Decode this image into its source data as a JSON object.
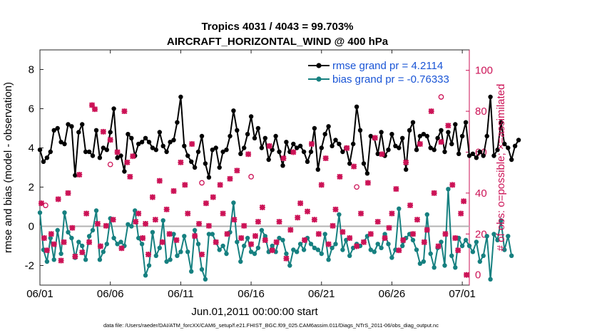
{
  "chart_data": {
    "type": "line",
    "title": "Tropics 4031 / 4043 = 99.703%",
    "subtitle": "AIRCRAFT_HORIZONTAL_WIND @ 400 hPa",
    "xlabel": "Jun.01,2011 00:00:00 start",
    "ylabel": "rmse and bias (model - observation)",
    "ylabel_right": "# of obs: o=possible; ×=assimilated",
    "xlim": [
      0,
      30.5
    ],
    "ylim": [
      -3,
      9
    ],
    "ylim_right": [
      -5,
      110
    ],
    "x_ticks": [
      0,
      5,
      10,
      15,
      20,
      25,
      30
    ],
    "x_tick_labels": [
      "06/01",
      "06/06",
      "06/11",
      "06/16",
      "06/21",
      "06/26",
      "07/01"
    ],
    "y_ticks": [
      -2,
      0,
      2,
      4,
      6,
      8
    ],
    "y_tick_labels": [
      "-2",
      "0",
      "2",
      "4",
      "6",
      "8"
    ],
    "y_right_ticks": [
      0,
      20,
      40,
      60,
      80,
      100
    ],
    "y_right_tick_labels": [
      "0",
      "20",
      "40",
      "60",
      "80",
      "100"
    ],
    "legend_position": "top-right",
    "zero_line": 0,
    "footnote": "data file: /Users/raeder/DAI/ATM_forcXX/CAM6_setup/f.e21.FHIST_BGC.f09_025.CAM6assim.011/Diags_NTrS_2011-06/obs_diag_output.nc",
    "colors": {
      "rmse": "#000000",
      "bias": "#168080",
      "counts": "#cc1256",
      "zero": "#b3b3b3",
      "legend_text": "#1a55d6"
    },
    "series": [
      {
        "name": "rmse grand pr = 4.2114",
        "axis": "left",
        "values": [
          3.9,
          3.3,
          3.5,
          3.8,
          4.9,
          5.0,
          4.3,
          4.2,
          5.2,
          5.1,
          2.6,
          4.8,
          5.2,
          3.8,
          3.8,
          3.6,
          4.9,
          3.5,
          4.0,
          3.9,
          4.8,
          6.0,
          3.5,
          3.6,
          2.8,
          4.7,
          4.5,
          3.6,
          4.2,
          4.3,
          4.5,
          4.3,
          4.0,
          3.9,
          4.8,
          4.1,
          3.8,
          4.3,
          4.4,
          5.3,
          6.6,
          4.1,
          3.6,
          3.3,
          3.0,
          3.8,
          4.6,
          3.2,
          2.5,
          3.9,
          4.0,
          3.0,
          3.8,
          3.9,
          4.6,
          5.9,
          4.9,
          3.7,
          4.0,
          4.7,
          5.6,
          4.5,
          5.0,
          4.0,
          4.5,
          3.4,
          3.9,
          4.6,
          3.8,
          3.1,
          4.3,
          3.8,
          4.2,
          4.0,
          4.1,
          3.8,
          3.3,
          3.8,
          5.0,
          2.9,
          4.0,
          4.7,
          5.1,
          4.1,
          4.4,
          4.2,
          3.8,
          4.0,
          3.2,
          4.2,
          6.1,
          4.9,
          3.2,
          2.7,
          4.6,
          4.5,
          3.7,
          4.8,
          3.6,
          3.9,
          4.7,
          4.1,
          4.0,
          4.5,
          2.9,
          4.9,
          5.3,
          3.9,
          4.6,
          4.7,
          4.6,
          4.0,
          3.9,
          4.5,
          4.9,
          3.8,
          4.8,
          4.2,
          5.2,
          3.7,
          4.6,
          5.3,
          3.6,
          3.7,
          3.5,
          3.8,
          3.6,
          4.6,
          6.6,
          3.6,
          3.9,
          5.3,
          4.2,
          4.0,
          3.4,
          4.1,
          4.4
        ],
        "x_start": 0,
        "x_step": 0.25
      },
      {
        "name": "bias grand pr = -0.76333",
        "axis": "left",
        "values": [
          0.7,
          -1.2,
          -1.8,
          -0.6,
          -1.7,
          -0.2,
          -1.4,
          0.7,
          -0.3,
          -0.6,
          -1.6,
          -0.8,
          -1.0,
          -1.7,
          -0.5,
          -0.2,
          0.8,
          -1.7,
          -1.3,
          -0.9,
          0.4,
          -0.6,
          -0.9,
          -0.8,
          -1.0,
          0.1,
          0.0,
          0.8,
          -0.6,
          -0.9,
          -2.5,
          -2.0,
          -0.3,
          -1.5,
          -1.1,
          0.3,
          -1.8,
          -1.7,
          -0.4,
          -1.5,
          -1.3,
          -0.5,
          -1.3,
          -2.3,
          -0.2,
          -0.9,
          -2.2,
          -2.7,
          -0.4,
          -0.4,
          -0.8,
          -1.2,
          -1.0,
          -1.4,
          -0.3,
          1.2,
          -0.8,
          -1.8,
          -1.0,
          -0.6,
          -1.3,
          -1.4,
          -1.1,
          -0.2,
          -0.5,
          -1.3,
          -1.0,
          -1.3,
          -0.6,
          -0.7,
          -1.4,
          -2.0,
          -1.2,
          -1.3,
          -0.9,
          -1.2,
          -0.6,
          -0.9,
          -1.1,
          -1.2,
          -1.4,
          -0.4,
          -1.7,
          -1.1,
          -0.9,
          0.6,
          -1.2,
          -0.7,
          -1.5,
          -1.1,
          -0.9,
          -1.0,
          -0.8,
          -0.5,
          -1.2,
          -1.3,
          -0.9,
          -1.1,
          -0.4,
          -0.9,
          -1.6,
          -1.2,
          0.9,
          -1.0,
          -0.6,
          -0.4,
          -0.7,
          -1.2,
          -1.9,
          -1.8,
          0.6,
          -1.4,
          -2.1,
          -1.1,
          -0.8,
          -2.0,
          1.9,
          -1.5,
          -2.1,
          -0.6,
          -1.0,
          -0.7,
          -1.0,
          -1.3,
          -0.8,
          -1.8,
          -1.5,
          -0.5,
          -2.7,
          -0.4,
          -0.7,
          0.3,
          -1.2,
          -0.5,
          -1.5
        ],
        "x_start": 0,
        "x_step": 0.25
      },
      {
        "name": "possible",
        "axis": "right",
        "marker": "circle",
        "points": [
          [
            0.4,
            34
          ],
          [
            5.0,
            54
          ],
          [
            11.5,
            45
          ],
          [
            15.0,
            48
          ],
          [
            22.5,
            43
          ],
          [
            28.5,
            87
          ]
        ]
      },
      {
        "name": "assimilated",
        "axis": "right",
        "marker": "x",
        "points": [
          [
            0.1,
            35
          ],
          [
            0.3,
            18
          ],
          [
            0.5,
            12
          ],
          [
            0.8,
            20
          ],
          [
            1.0,
            15
          ],
          [
            1.3,
            37
          ],
          [
            1.5,
            7
          ],
          [
            1.7,
            16
          ],
          [
            2.0,
            40
          ],
          [
            2.3,
            23
          ],
          [
            2.5,
            9
          ],
          [
            2.8,
            49
          ],
          [
            3.0,
            11
          ],
          [
            3.3,
            30
          ],
          [
            3.5,
            16
          ],
          [
            3.7,
            83
          ],
          [
            3.9,
            81
          ],
          [
            4.1,
            25
          ],
          [
            4.3,
            14
          ],
          [
            4.5,
            70
          ],
          [
            4.7,
            24
          ],
          [
            5.0,
            66
          ],
          [
            5.2,
            27
          ],
          [
            5.5,
            60
          ],
          [
            5.8,
            13
          ],
          [
            6.0,
            80
          ],
          [
            6.2,
            55
          ],
          [
            6.4,
            48
          ],
          [
            6.6,
            58
          ],
          [
            6.8,
            26
          ],
          [
            7.0,
            30
          ],
          [
            7.3,
            18
          ],
          [
            7.5,
            25
          ],
          [
            7.7,
            10
          ],
          [
            8.0,
            38
          ],
          [
            8.2,
            27
          ],
          [
            8.5,
            46
          ],
          [
            8.7,
            16
          ],
          [
            9.0,
            32
          ],
          [
            9.2,
            20
          ],
          [
            9.5,
            41
          ],
          [
            9.7,
            17
          ],
          [
            10.0,
            55
          ],
          [
            10.3,
            44
          ],
          [
            10.5,
            30
          ],
          [
            10.8,
            64
          ],
          [
            11.0,
            19
          ],
          [
            11.3,
            25
          ],
          [
            11.5,
            10
          ],
          [
            11.8,
            35
          ],
          [
            12.0,
            24
          ],
          [
            12.3,
            38
          ],
          [
            12.5,
            16
          ],
          [
            12.8,
            44
          ],
          [
            13.0,
            30
          ],
          [
            13.3,
            20
          ],
          [
            13.5,
            47
          ],
          [
            13.8,
            27
          ],
          [
            14.0,
            51
          ],
          [
            14.3,
            18
          ],
          [
            14.5,
            24
          ],
          [
            14.8,
            59
          ],
          [
            15.0,
            15
          ],
          [
            15.3,
            19
          ],
          [
            15.5,
            26
          ],
          [
            15.8,
            33
          ],
          [
            16.0,
            17
          ],
          [
            16.3,
            63
          ],
          [
            16.5,
            12
          ],
          [
            16.8,
            16
          ],
          [
            17.0,
            26
          ],
          [
            17.3,
            57
          ],
          [
            17.5,
            8
          ],
          [
            17.8,
            22
          ],
          [
            18.0,
            60
          ],
          [
            18.3,
            28
          ],
          [
            18.5,
            35
          ],
          [
            18.8,
            17
          ],
          [
            19.0,
            31
          ],
          [
            19.3,
            64
          ],
          [
            19.5,
            27
          ],
          [
            19.8,
            20
          ],
          [
            20.0,
            44
          ],
          [
            20.3,
            57
          ],
          [
            20.5,
            15
          ],
          [
            20.8,
            24
          ],
          [
            21.0,
            32
          ],
          [
            21.3,
            48
          ],
          [
            21.5,
            21
          ],
          [
            21.8,
            62
          ],
          [
            22.0,
            18
          ],
          [
            22.3,
            53
          ],
          [
            22.5,
            14
          ],
          [
            22.8,
            30
          ],
          [
            23.0,
            16
          ],
          [
            23.3,
            45
          ],
          [
            23.5,
            20
          ],
          [
            23.8,
            67
          ],
          [
            24.0,
            26
          ],
          [
            24.3,
            59
          ],
          [
            24.5,
            18
          ],
          [
            24.8,
            23
          ],
          [
            25.0,
            30
          ],
          [
            25.3,
            42
          ],
          [
            25.5,
            12
          ],
          [
            25.8,
            17
          ],
          [
            26.0,
            55
          ],
          [
            26.3,
            34
          ],
          [
            26.5,
            20
          ],
          [
            26.8,
            27
          ],
          [
            27.0,
            64
          ],
          [
            27.3,
            16
          ],
          [
            27.5,
            22
          ],
          [
            27.8,
            80
          ],
          [
            28.0,
            40
          ],
          [
            28.3,
            14
          ],
          [
            28.5,
            65
          ],
          [
            28.8,
            20
          ],
          [
            29.0,
            73
          ],
          [
            29.3,
            44
          ],
          [
            29.5,
            18
          ],
          [
            29.7,
            12
          ],
          [
            29.9,
            30
          ],
          [
            30.1,
            36
          ],
          [
            30.3,
            0
          ]
        ]
      }
    ]
  }
}
